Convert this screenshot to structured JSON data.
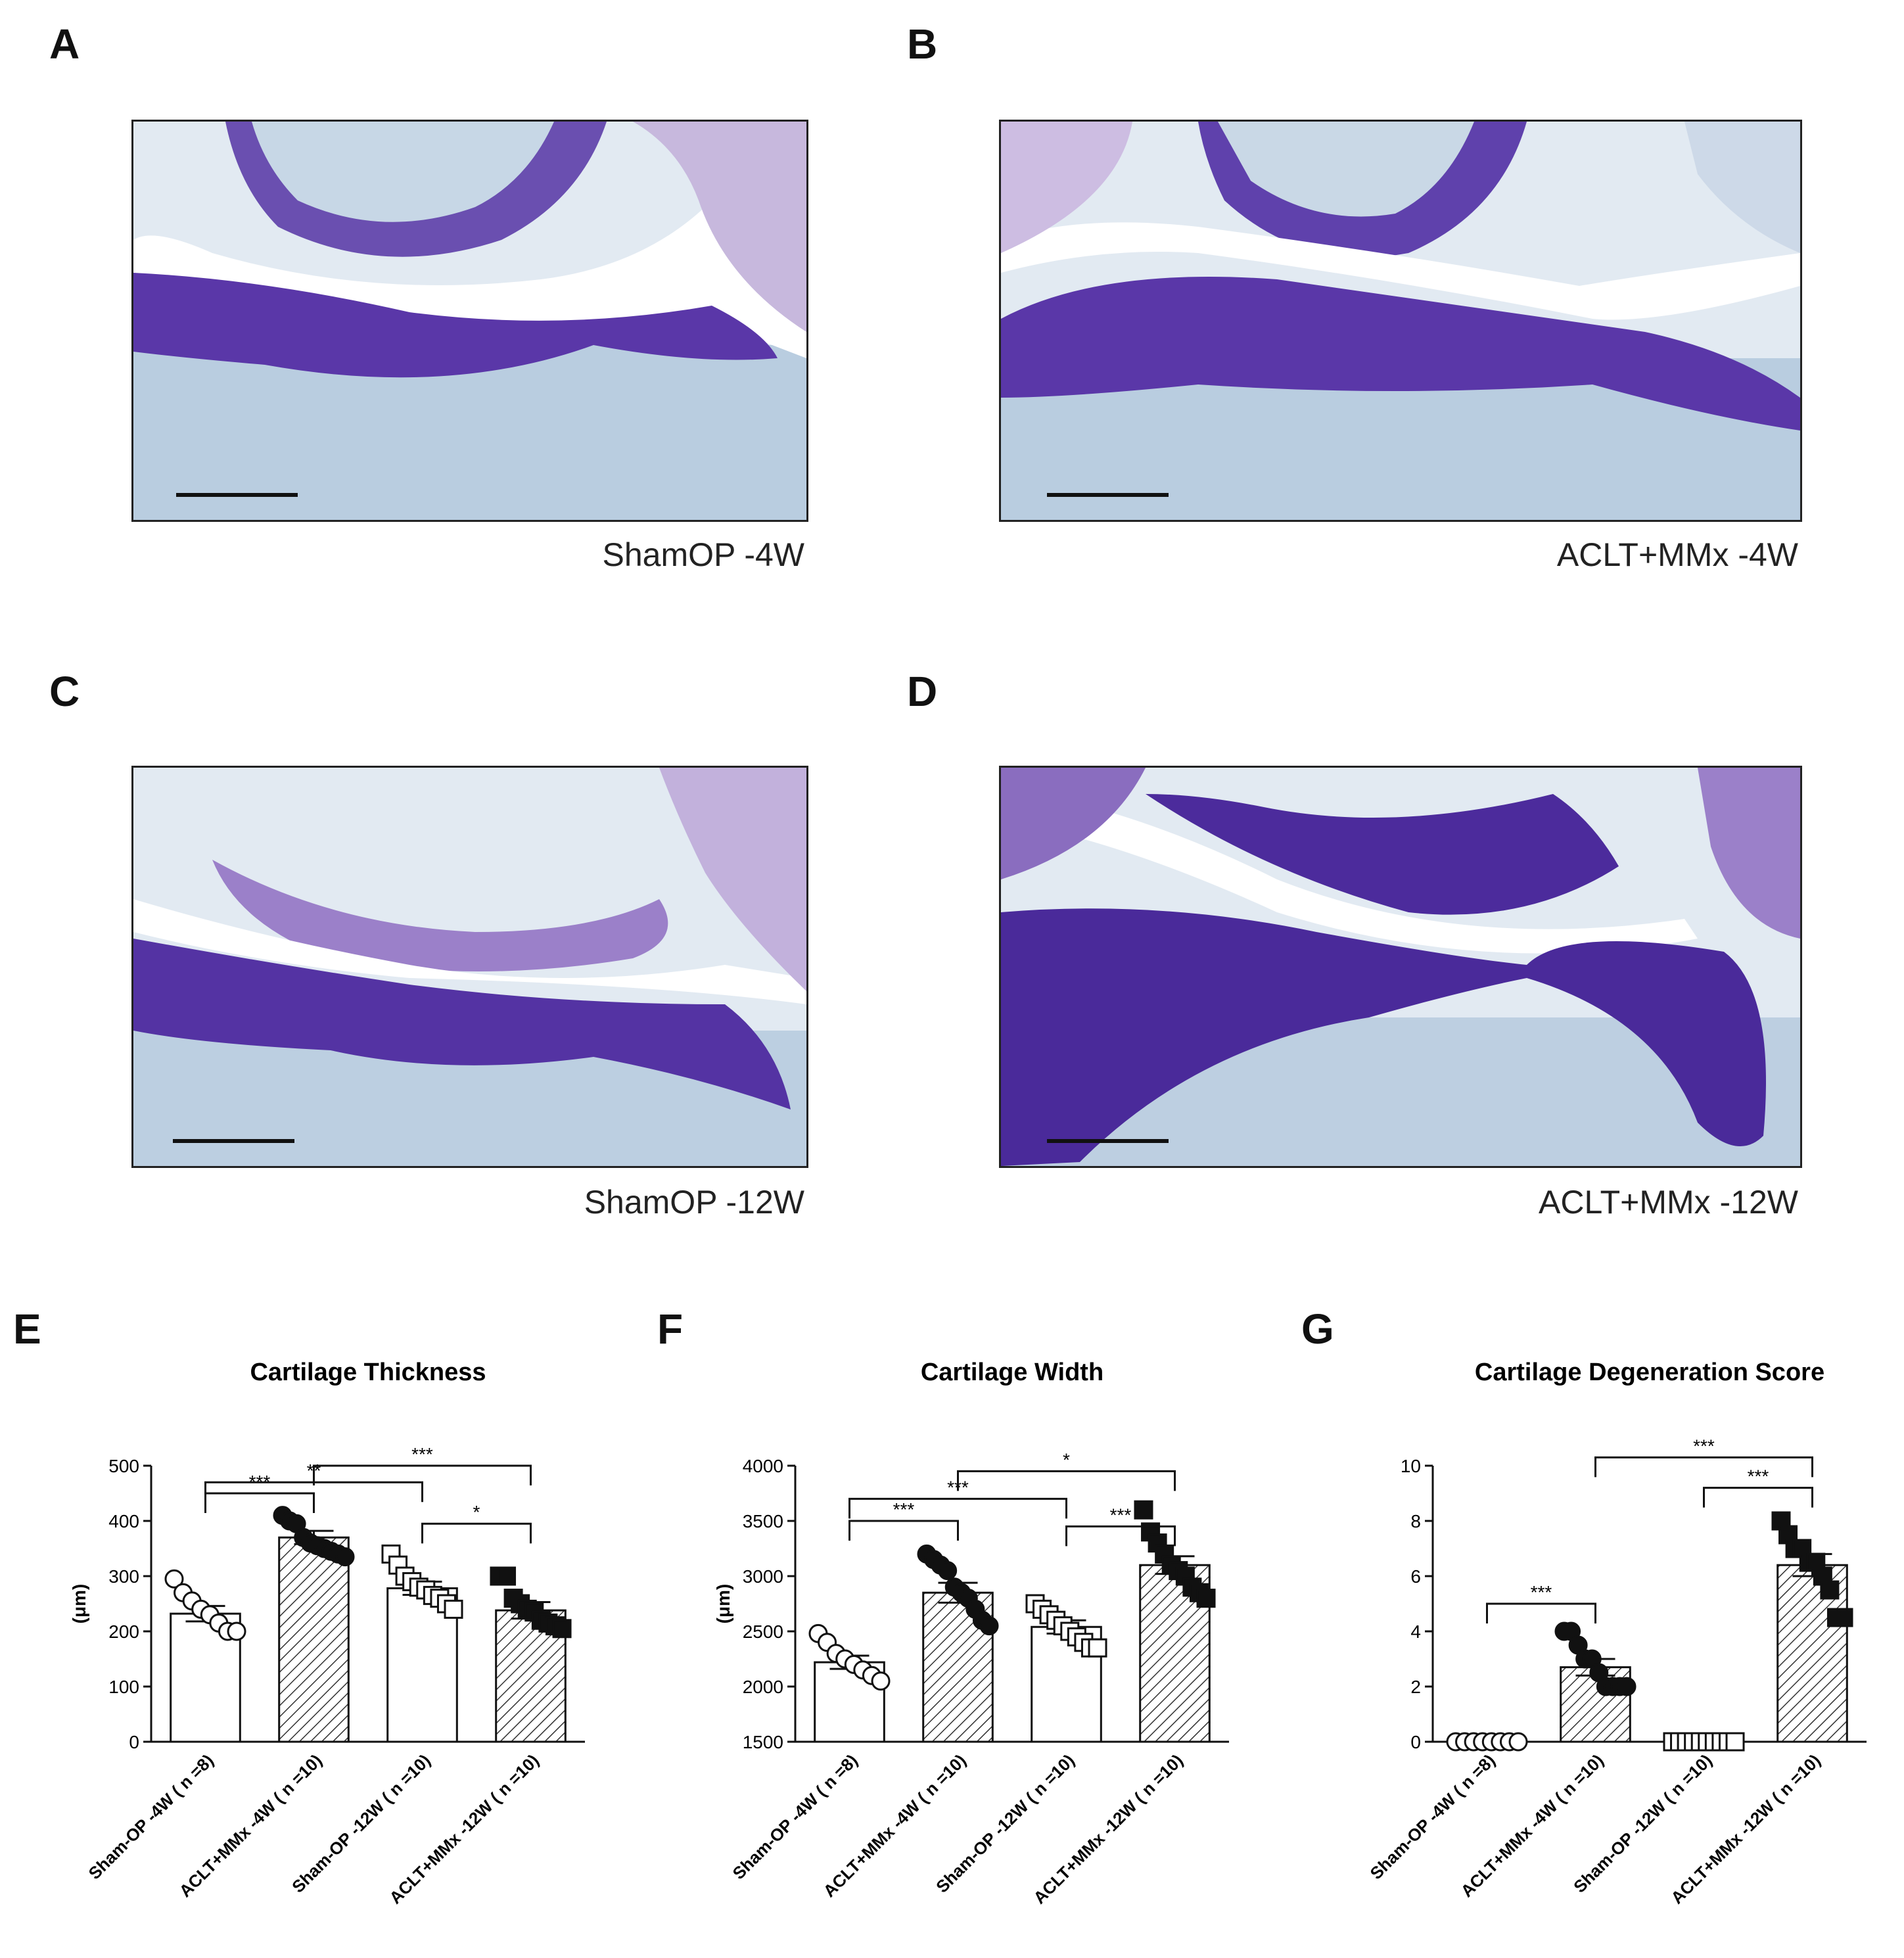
{
  "figure": {
    "panel_letters": [
      "A",
      "B",
      "C",
      "D",
      "E",
      "F",
      "G"
    ],
    "images": [
      {
        "letter": "A",
        "caption": "ShamOP -4W"
      },
      {
        "letter": "B",
        "caption": "ACLT+MMx -4W"
      },
      {
        "letter": "C",
        "caption": "ShamOP -12W"
      },
      {
        "letter": "D",
        "caption": "ACLT+MMx -12W"
      }
    ],
    "colors": {
      "cartilage": "#5b3aa6",
      "bone": "#b7cde0",
      "background": "#e4ebf2",
      "gap": "#ffffff"
    }
  },
  "chart_data": [
    {
      "type": "bar",
      "title": "Cartilage Thickness",
      "ylabel": "(μm)",
      "xlabel": "",
      "ylim": [
        0,
        500
      ],
      "yticks": [
        0,
        100,
        200,
        300,
        400,
        500
      ],
      "categories": [
        "Sham-OP -4W ( n =8)",
        "ACLT+MMx -4W ( n =10)",
        "Sham-OP -12W ( n =10)",
        "ACLT+MMx -12W ( n =10)"
      ],
      "values": [
        232,
        370,
        278,
        238
      ],
      "errors": [
        14,
        12,
        12,
        15
      ],
      "points": [
        [
          295,
          270,
          255,
          240,
          230,
          215,
          200,
          200
        ],
        [
          410,
          400,
          395,
          370,
          360,
          355,
          350,
          345,
          340,
          335
        ],
        [
          340,
          320,
          300,
          290,
          280,
          275,
          265,
          260,
          250,
          240
        ],
        [
          300,
          300,
          260,
          250,
          240,
          235,
          220,
          215,
          210,
          205
        ]
      ],
      "markers": [
        "open-circle",
        "filled-circle",
        "open-square",
        "filled-square"
      ],
      "fills": [
        "white",
        "hatch",
        "white",
        "hatch"
      ],
      "significance": [
        {
          "from": 0,
          "to": 1,
          "label": "***",
          "level": 450
        },
        {
          "from": 0,
          "to": 2,
          "label": "**",
          "level": 470
        },
        {
          "from": 1,
          "to": 3,
          "label": "***",
          "level": 500
        },
        {
          "from": 2,
          "to": 3,
          "label": "*",
          "level": 395
        }
      ]
    },
    {
      "type": "bar",
      "title": "Cartilage Width",
      "ylabel": "(μm)",
      "xlabel": "",
      "ylim": [
        1500,
        4000
      ],
      "yticks": [
        1500,
        2000,
        2500,
        3000,
        3500,
        4000
      ],
      "categories": [
        "Sham-OP -4W ( n =8)",
        "ACLT+MMx -4W ( n =10)",
        "Sham-OP -12W ( n =10)",
        "ACLT+MMx -12W ( n =10)"
      ],
      "values": [
        2220,
        2850,
        2540,
        3100
      ],
      "errors": [
        60,
        90,
        60,
        80
      ],
      "points": [
        [
          2480,
          2400,
          2300,
          2250,
          2200,
          2150,
          2100,
          2050
        ],
        [
          3200,
          3150,
          3100,
          3050,
          2900,
          2850,
          2800,
          2700,
          2600,
          2550
        ],
        [
          2750,
          2700,
          2650,
          2600,
          2550,
          2500,
          2450,
          2400,
          2350,
          2350
        ],
        [
          3600,
          3400,
          3300,
          3200,
          3100,
          3050,
          3000,
          2900,
          2850,
          2800
        ]
      ],
      "markers": [
        "open-circle",
        "filled-circle",
        "open-square",
        "filled-square"
      ],
      "fills": [
        "white",
        "hatch",
        "white",
        "hatch"
      ],
      "significance": [
        {
          "from": 0,
          "to": 1,
          "label": "***",
          "level": 3500
        },
        {
          "from": 0,
          "to": 2,
          "label": "***",
          "level": 3700
        },
        {
          "from": 2,
          "to": 3,
          "label": "***",
          "level": 3450
        },
        {
          "from": 1,
          "to": 3,
          "label": "*",
          "level": 3950
        }
      ]
    },
    {
      "type": "bar",
      "title": "Cartilage Degeneration Score",
      "ylabel": "",
      "xlabel": "",
      "ylim": [
        0,
        10
      ],
      "yticks": [
        0,
        2,
        4,
        6,
        8,
        10
      ],
      "categories": [
        "Sham-OP -4W ( n =8)",
        "ACLT+MMx -4W ( n =10)",
        "Sham-OP -12W ( n =10)",
        "ACLT+MMx -12W ( n =10)"
      ],
      "values": [
        0,
        2.7,
        0,
        6.4
      ],
      "errors": [
        0,
        0.3,
        0,
        0.4
      ],
      "points": [
        [
          0,
          0,
          0,
          0,
          0,
          0,
          0,
          0
        ],
        [
          4,
          4,
          3.5,
          3,
          3,
          2.5,
          2,
          2,
          2,
          2
        ],
        [
          0,
          0,
          0,
          0,
          0,
          0,
          0,
          0,
          0,
          0
        ],
        [
          8,
          7.5,
          7,
          7,
          6.5,
          6.5,
          6,
          5.5,
          4.5,
          4.5
        ]
      ],
      "markers": [
        "open-circle",
        "filled-circle",
        "open-square",
        "filled-square"
      ],
      "fills": [
        "white",
        "hatch",
        "white",
        "hatch"
      ],
      "significance": [
        {
          "from": 0,
          "to": 1,
          "label": "***",
          "level": 5
        },
        {
          "from": 2,
          "to": 3,
          "label": "***",
          "level": 9.2
        },
        {
          "from": 1,
          "to": 3,
          "label": "***",
          "level": 10.3
        }
      ]
    }
  ]
}
